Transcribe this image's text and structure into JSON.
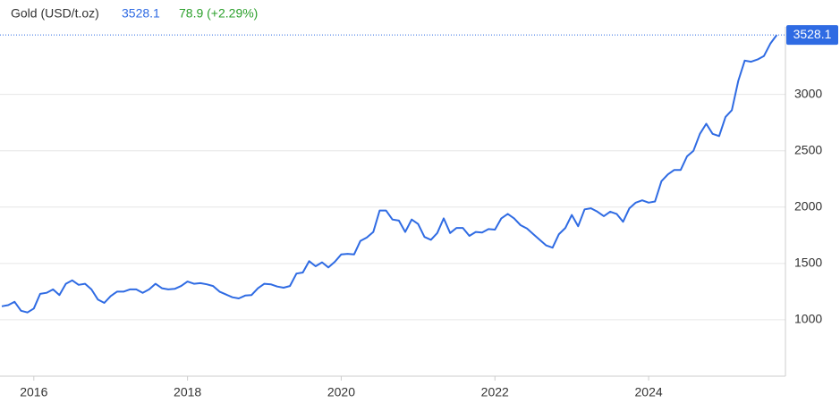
{
  "chart_data": {
    "type": "line",
    "last_value": 3528.1,
    "change": "78.9 (+2.29%)",
    "change_color": "#2ca02c",
    "x": [
      2015.583,
      2015.667,
      2015.75,
      2015.833,
      2015.917,
      2016,
      2016.083,
      2016.167,
      2016.25,
      2016.333,
      2016.417,
      2016.5,
      2016.583,
      2016.667,
      2016.75,
      2016.833,
      2016.917,
      2017,
      2017.083,
      2017.167,
      2017.25,
      2017.333,
      2017.417,
      2017.5,
      2017.583,
      2017.667,
      2017.75,
      2017.833,
      2017.917,
      2018,
      2018.083,
      2018.167,
      2018.25,
      2018.333,
      2018.417,
      2018.5,
      2018.583,
      2018.667,
      2018.75,
      2018.833,
      2018.917,
      2019,
      2019.083,
      2019.167,
      2019.25,
      2019.333,
      2019.417,
      2019.5,
      2019.583,
      2019.667,
      2019.75,
      2019.833,
      2019.917,
      2020,
      2020.083,
      2020.167,
      2020.25,
      2020.333,
      2020.417,
      2020.5,
      2020.583,
      2020.667,
      2020.75,
      2020.833,
      2020.917,
      2021,
      2021.083,
      2021.167,
      2021.25,
      2021.333,
      2021.417,
      2021.5,
      2021.583,
      2021.667,
      2021.75,
      2021.833,
      2021.917,
      2022,
      2022.083,
      2022.167,
      2022.25,
      2022.333,
      2022.417,
      2022.5,
      2022.583,
      2022.667,
      2022.75,
      2022.833,
      2022.917,
      2023,
      2023.083,
      2023.167,
      2023.25,
      2023.333,
      2023.417,
      2023.5,
      2023.583,
      2023.667,
      2023.75,
      2023.833,
      2023.917,
      2024,
      2024.083,
      2024.167,
      2024.25,
      2024.333,
      2024.417,
      2024.5,
      2024.583,
      2024.667,
      2024.75,
      2024.833,
      2024.917,
      2025,
      2025.083,
      2025.167,
      2025.25,
      2025.333,
      2025.417,
      2025.5,
      2025.583,
      2025.667
    ],
    "series": [
      {
        "name": "Gold (USD/t.oz)",
        "color": "#2f6be3",
        "values": [
          1120,
          1130,
          1160,
          1080,
          1065,
          1100,
          1230,
          1240,
          1270,
          1220,
          1320,
          1350,
          1310,
          1320,
          1270,
          1180,
          1150,
          1210,
          1250,
          1250,
          1270,
          1270,
          1240,
          1270,
          1320,
          1280,
          1270,
          1275,
          1300,
          1340,
          1320,
          1325,
          1315,
          1300,
          1250,
          1225,
          1200,
          1190,
          1215,
          1220,
          1280,
          1320,
          1315,
          1295,
          1285,
          1300,
          1410,
          1420,
          1520,
          1475,
          1510,
          1465,
          1515,
          1580,
          1585,
          1580,
          1700,
          1730,
          1780,
          1970,
          1970,
          1890,
          1880,
          1780,
          1890,
          1850,
          1735,
          1710,
          1770,
          1900,
          1770,
          1815,
          1815,
          1745,
          1780,
          1775,
          1805,
          1800,
          1900,
          1940,
          1900,
          1840,
          1810,
          1760,
          1710,
          1660,
          1640,
          1760,
          1815,
          1930,
          1830,
          1980,
          1990,
          1960,
          1920,
          1960,
          1940,
          1870,
          1990,
          2040,
          2060,
          2040,
          2050,
          2230,
          2290,
          2330,
          2330,
          2450,
          2500,
          2650,
          2740,
          2650,
          2630,
          2800,
          2860,
          3120,
          3300,
          3290,
          3310,
          3340,
          3450,
          3528.1
        ]
      }
    ],
    "xlim": [
      2015.56,
      2025.78
    ],
    "xticks": [
      2016,
      2018,
      2020,
      2022,
      2024
    ],
    "ylim": [
      500,
      3600
    ],
    "yticks": [
      1000,
      1500,
      2000,
      2500,
      3000
    ],
    "grid": true
  }
}
